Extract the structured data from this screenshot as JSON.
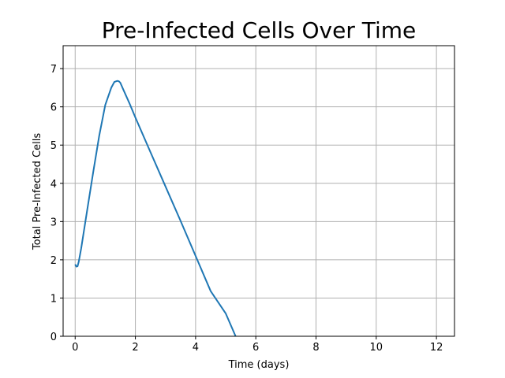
{
  "chart_data": {
    "type": "line",
    "title": "Pre-Infected Cells Over Time",
    "xlabel": "Time (days)",
    "ylabel": "Total Pre-Infected Cells",
    "xlim": [
      -0.4,
      12.6
    ],
    "ylim": [
      0,
      7.6
    ],
    "xticks": [
      0,
      2,
      4,
      6,
      8,
      10,
      12
    ],
    "yticks": [
      0,
      1,
      2,
      3,
      4,
      5,
      6,
      7
    ],
    "grid": true,
    "series": [
      {
        "color": "#1f77b4",
        "x": [
          0.0,
          0.04,
          0.08,
          0.12,
          0.2,
          0.4,
          0.6,
          0.8,
          1.0,
          1.2,
          1.3,
          1.4,
          1.45,
          1.5,
          1.6,
          1.8,
          2.0,
          2.5,
          3.0,
          3.5,
          4.0,
          4.5,
          5.0,
          5.33
        ],
        "y": [
          1.88,
          1.82,
          1.83,
          1.95,
          2.3,
          3.3,
          4.3,
          5.25,
          6.05,
          6.5,
          6.65,
          6.68,
          6.67,
          6.63,
          6.45,
          6.1,
          5.72,
          4.82,
          3.92,
          3.02,
          2.1,
          1.18,
          0.6,
          0.0
        ]
      }
    ]
  }
}
